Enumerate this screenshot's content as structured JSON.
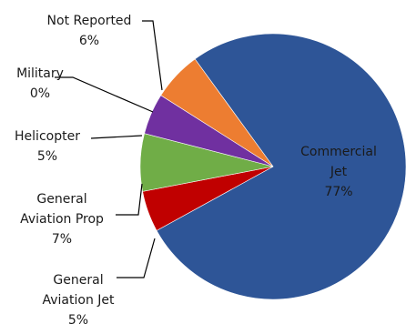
{
  "chart_data": {
    "type": "pie",
    "title": "",
    "slices": [
      {
        "name": "Commercial Jet",
        "label_lines": [
          "Commercial",
          "Jet"
        ],
        "value": 77,
        "value_label": "77%",
        "color": "#2E5597"
      },
      {
        "name": "General Aviation Jet",
        "label_lines": [
          "General",
          "Aviation Jet"
        ],
        "value": 5,
        "value_label": "5%",
        "color": "#C00000"
      },
      {
        "name": "General Aviation Prop",
        "label_lines": [
          "General",
          "Aviation Prop"
        ],
        "value": 7,
        "value_label": "7%",
        "color": "#70AD47"
      },
      {
        "name": "Helicopter",
        "label_lines": [
          "Helicopter"
        ],
        "value": 5,
        "value_label": "5%",
        "color": "#7030A0"
      },
      {
        "name": "Military",
        "label_lines": [
          "Military"
        ],
        "value": 0,
        "value_label": "0%",
        "color": "#4BACC6"
      },
      {
        "name": "Not Reported",
        "label_lines": [
          "Not Reported"
        ],
        "value": 6,
        "value_label": "6%",
        "color": "#ED7D31"
      }
    ],
    "legend": "none",
    "data_labels": "category-and-percent"
  }
}
